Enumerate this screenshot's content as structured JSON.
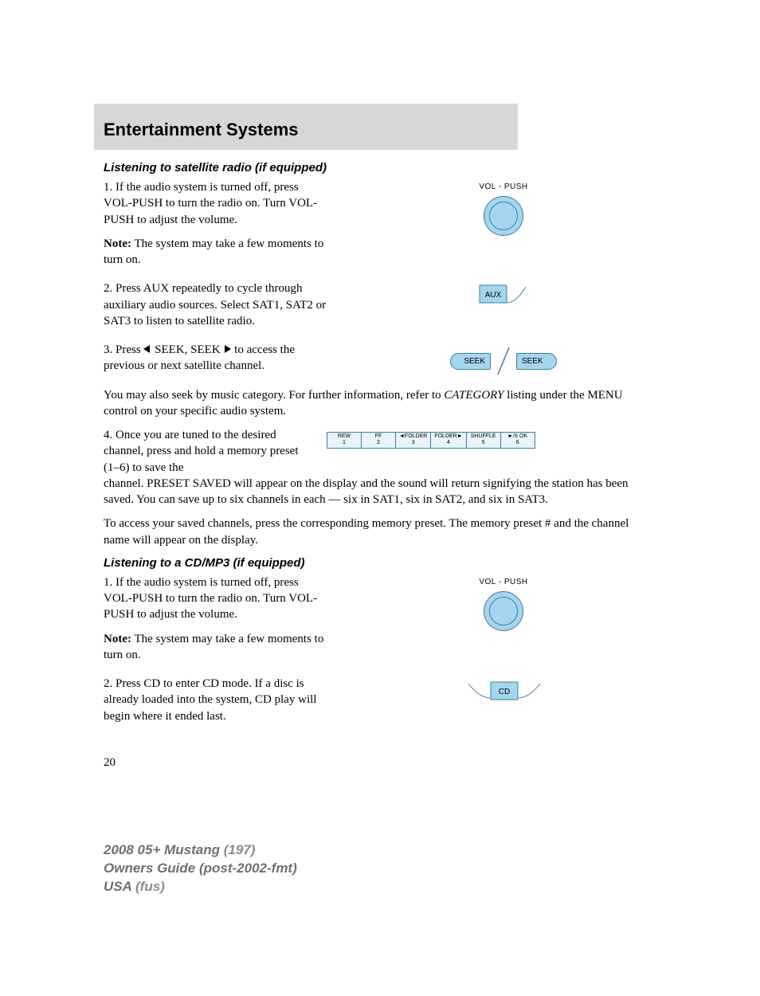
{
  "header": {
    "title": "Entertainment Systems"
  },
  "section_sat": {
    "heading": "Listening to satellite radio (if equipped)",
    "p1": "1. If the audio system is turned off, press VOL-PUSH to turn the radio on. Turn VOL-PUSH to adjust the volume.",
    "note_label": "Note:",
    "note_text": " The system may take a few moments to turn on.",
    "p2": "2. Press AUX repeatedly to cycle through auxiliary audio sources. Select SAT1, SAT2 or SAT3 to listen to satellite radio.",
    "p3_a": "3. Press ",
    "p3_b": " SEEK, SEEK ",
    "p3_c": " to access the previous or next satellite channel.",
    "p4_a": "You may also seek by music category. For further information, refer to ",
    "p4_cat": "CATEGORY",
    "p4_b": " listing under the MENU control on your specific audio system.",
    "p5": "4. Once you are tuned to the desired channel, press and hold a memory preset (1–6) to save the",
    "p5_cont": "channel. PRESET SAVED will appear on the display and the sound will return signifying the station has been saved. You can save up to six channels in each — six in SAT1, six in SAT2, and six in SAT3.",
    "p6": "To access your saved channels, press the corresponding memory preset. The memory preset # and the channel name will appear on the display."
  },
  "section_cd": {
    "heading": "Listening to a CD/MP3 (if equipped)",
    "p1": "1. If the audio system is turned off, press VOL-PUSH to turn the radio on. Turn VOL-PUSH to adjust the volume.",
    "note_label": "Note:",
    "note_text": " The system may take a few moments to turn on.",
    "p2": "2. Press CD to enter CD mode. If a disc is already loaded into the system, CD play will begin where it ended last."
  },
  "figures": {
    "vol_label": "VOL - PUSH",
    "aux_label": "AUX",
    "seek_label": "SEEK",
    "cd_label": "CD",
    "knob_color": "#a6d5ee",
    "stroke_color": "#3b7fa3",
    "presets": [
      {
        "top": "REW",
        "n": "1"
      },
      {
        "top": "FF",
        "n": "2"
      },
      {
        "top": "◄FOLDER",
        "n": "3"
      },
      {
        "top": "FOLDER►",
        "n": "4"
      },
      {
        "top": "SHUFFLE",
        "n": "5"
      },
      {
        "top": "►/II OK",
        "n": "6"
      }
    ]
  },
  "page_number": "20",
  "footer": {
    "l1a": "2008 05+ Mustang ",
    "l1b": "(197)",
    "l2": "Owners Guide (post-2002-fmt)",
    "l3a": "USA ",
    "l3b": "(fus)"
  }
}
